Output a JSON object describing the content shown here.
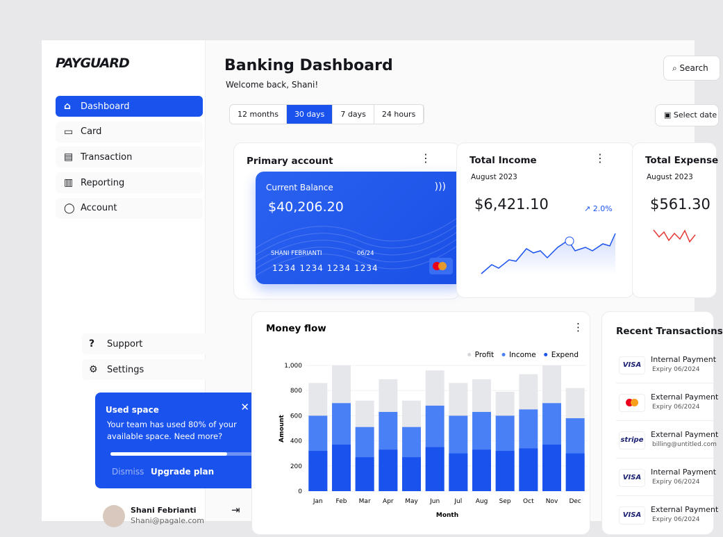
{
  "brand": "PAYGUARD",
  "nav": [
    "Dashboard",
    "Card",
    "Transaction",
    "Reporting",
    "Account"
  ],
  "nav_bottom": [
    "Support",
    "Settings"
  ],
  "used_space": {
    "title": "Used space",
    "text": "Your team has used 80% of your available space. Need more?",
    "dismiss": "Dismiss",
    "upgrade": "Upgrade plan"
  },
  "user": {
    "name": "Shani Febrianti",
    "email": "Shani@pagale.com"
  },
  "header": {
    "title": "Banking Dashboard",
    "subtitle": "Welcome back, Shani!",
    "search": "Search",
    "date": "Select date"
  },
  "filters": {
    "options": [
      "12 months",
      "30 days",
      "7 days",
      "24 hours"
    ],
    "active": 1
  },
  "primary": {
    "title": "Primary account",
    "balance_label": "Current Balance",
    "balance": "$40,206.20",
    "holder": "SHANI FEBRIANTI",
    "expiry": "06/24",
    "number": "1234 1234 1234 1234"
  },
  "income": {
    "title": "Total Income",
    "period": "August 2023",
    "amount": "$6,421.10",
    "change": "2.0%"
  },
  "expense": {
    "title": "Total Expense",
    "period": "August 2023",
    "amount": "$561.30"
  },
  "transactions": {
    "title": "Recent Transactions",
    "items": [
      {
        "brand": "VISA",
        "name": "Internal Payment",
        "sub": "Expiry 06/2024"
      },
      {
        "brand": "",
        "name": "External Payment",
        "sub": "Expiry 06/2024"
      },
      {
        "brand": "stripe",
        "name": "External Payment",
        "sub": "billing@untitled.com"
      },
      {
        "brand": "VISA",
        "name": "Internal Payment",
        "sub": "Expiry 06/2024"
      },
      {
        "brand": "VISA",
        "name": "External Payment",
        "sub": "Expiry 06/2024"
      }
    ]
  },
  "chart_data": {
    "type": "bar",
    "title": "Money flow",
    "x_label": "Month",
    "y_label": "Amount",
    "categories": [
      "Jan",
      "Feb",
      "Mar",
      "Apr",
      "May",
      "Jun",
      "Jul",
      "Aug",
      "Sep",
      "Oct",
      "Nov",
      "Dec"
    ],
    "series": [
      {
        "name": "Profit",
        "color": "#e6e7eb",
        "values": [
          860,
          1000,
          720,
          890,
          720,
          960,
          860,
          890,
          790,
          930,
          1000,
          820
        ]
      },
      {
        "name": "Income",
        "color": "#4a80f6",
        "values": [
          600,
          700,
          510,
          630,
          510,
          680,
          600,
          630,
          600,
          650,
          700,
          580
        ]
      },
      {
        "name": "Expend",
        "color": "#1a52ee",
        "values": [
          320,
          370,
          270,
          330,
          270,
          350,
          300,
          330,
          320,
          340,
          370,
          300
        ]
      }
    ],
    "ylim": [
      0,
      1000
    ],
    "yticks": [
      0,
      200,
      400,
      600,
      800,
      {
        "value": 1000,
        "label": "1,000"
      }
    ]
  }
}
